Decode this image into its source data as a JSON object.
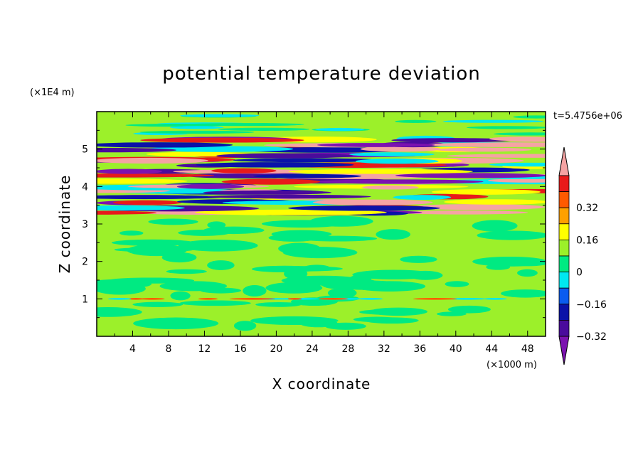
{
  "chart_data": {
    "type": "heatmap",
    "title": "potential temperature deviation",
    "xlabel": "X coordinate",
    "ylabel": "Z coordinate",
    "x_unit": "(×1000 m)",
    "y_unit": "(×1E4 m)",
    "time_label": "t=5.4756e+06",
    "xlim": [
      0,
      50
    ],
    "ylim": [
      0,
      6
    ],
    "x_ticks": [
      "4",
      "8",
      "12",
      "16",
      "20",
      "24",
      "28",
      "32",
      "36",
      "40",
      "44",
      "48"
    ],
    "y_ticks": [
      "1",
      "2",
      "3",
      "4",
      "5"
    ],
    "colorbar": {
      "labels": [
        "0.32",
        "0.16",
        "0",
        "-0.16",
        "-0.32"
      ],
      "levels": [
        -0.4,
        -0.32,
        -0.24,
        -0.16,
        -0.08,
        0,
        0.08,
        0.16,
        0.24,
        0.32,
        0.4
      ],
      "colors": [
        "#7c12b0",
        "#4a0b9c",
        "#0a12a8",
        "#0a5cf0",
        "#00e8f0",
        "#00ea82",
        "#9cf02a",
        "#ffff00",
        "#ffa000",
        "#ff5a00",
        "#e81a1a",
        "#f5a3a3"
      ],
      "extend": "both"
    },
    "regions": [
      {
        "z": [
          0,
          1.0
        ],
        "description_value": 0.04
      },
      {
        "z": [
          1.0,
          3.2
        ],
        "description_value": 0.04
      },
      {
        "z": [
          3.2,
          5.4
        ],
        "description_value": "alternating -0.4 / +0.4 bands"
      },
      {
        "z": [
          5.4,
          6.0
        ],
        "description_value": 0.04
      }
    ]
  }
}
